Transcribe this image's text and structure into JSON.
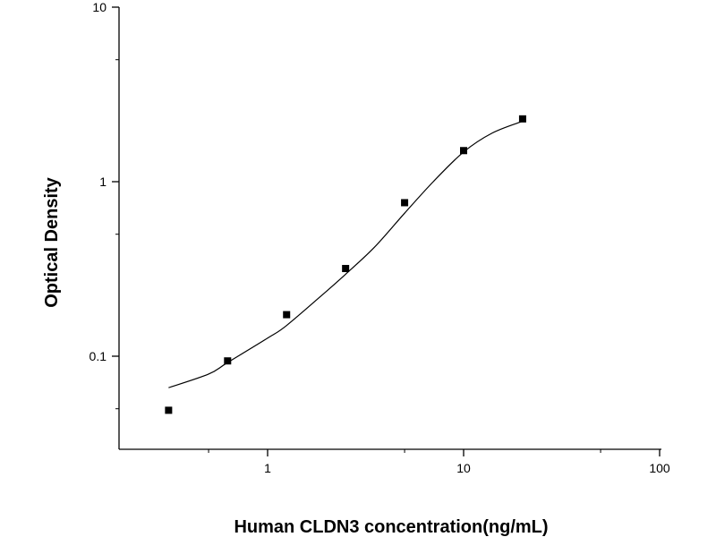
{
  "chart_data": {
    "type": "scatter",
    "title": "",
    "xlabel": "Human CLDN3 concentration(ng/mL)",
    "ylabel": "Optical Density",
    "xscale": "log",
    "yscale": "log",
    "xlim": [
      0.12,
      100
    ],
    "ylim": [
      0.03,
      10
    ],
    "x_ticks": [
      {
        "value": 1,
        "label": "1"
      },
      {
        "value": 10,
        "label": "10"
      },
      {
        "value": 100,
        "label": "100"
      }
    ],
    "y_ticks": [
      {
        "value": 0.1,
        "label": "0.1"
      },
      {
        "value": 1,
        "label": "1"
      },
      {
        "value": 10,
        "label": "10"
      }
    ],
    "grid": false,
    "legend": "none",
    "series": [
      {
        "type": "scatter",
        "marker": "square",
        "color": "#000000",
        "x": [
          0.3125,
          0.625,
          1.25,
          2.5,
          5,
          10,
          20
        ],
        "y": [
          0.049,
          0.094,
          0.173,
          0.318,
          0.758,
          1.507,
          2.29
        ]
      },
      {
        "type": "line",
        "color": "#000000",
        "x": [
          0.3125,
          0.5,
          0.625,
          1.0,
          1.25,
          2.0,
          2.5,
          3.5,
          5,
          7,
          10,
          14,
          20
        ],
        "y": [
          0.066,
          0.079,
          0.092,
          0.127,
          0.15,
          0.236,
          0.295,
          0.42,
          0.66,
          1.0,
          1.48,
          1.9,
          2.22
        ]
      }
    ]
  }
}
